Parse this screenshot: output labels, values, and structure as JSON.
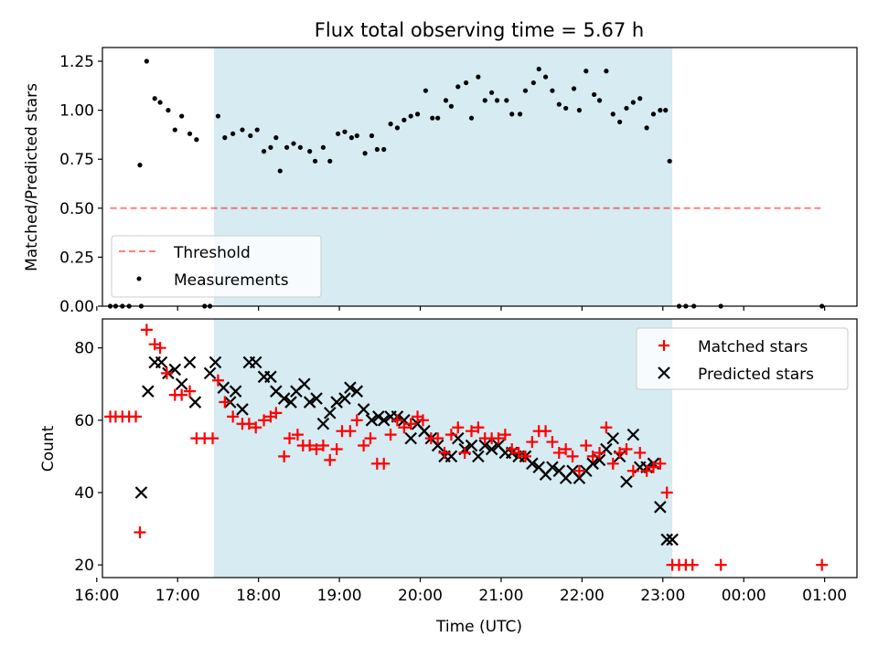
{
  "colors": {
    "shade": "#add8e6",
    "threshold": "#ff0000",
    "measurement": "#000000",
    "matched": "#ff0000",
    "predicted": "#000000"
  },
  "chart_data": [
    {
      "type": "scatter",
      "title": "Flux total observing time = 5.67 h",
      "xlabel": "",
      "ylabel": "Matched/Predicted stars",
      "xlim": [
        16.07,
        25.4
      ],
      "ylim": [
        0,
        1.32
      ],
      "yticks": [
        "0.00",
        "0.25",
        "0.50",
        "0.75",
        "1.00",
        "1.25"
      ],
      "grid": false,
      "legend_position": "lower-left",
      "shaded_interval": {
        "start": "17:27",
        "end": "23:07"
      },
      "threshold": {
        "name": "Threshold",
        "value": 0.5,
        "x_start": "16:10",
        "x_end": "24:57"
      },
      "series": [
        {
          "name": "Measurements",
          "x": [
            "16:10",
            "16:14",
            "16:19",
            "16:24",
            "16:32",
            "16:33",
            "16:37",
            "16:43",
            "16:47",
            "16:53",
            "16:58",
            "17:03",
            "17:09",
            "17:14",
            "17:20",
            "17:24",
            "17:30",
            "17:35",
            "17:41",
            "17:48",
            "17:54",
            "17:59",
            "18:04",
            "18:09",
            "18:13",
            "18:16",
            "18:21",
            "18:26",
            "18:31",
            "18:38",
            "18:42",
            "18:48",
            "18:53",
            "18:59",
            "19:04",
            "19:09",
            "19:13",
            "19:19",
            "19:24",
            "19:28",
            "19:33",
            "19:38",
            "19:43",
            "19:48",
            "19:53",
            "19:58",
            "20:04",
            "20:09",
            "20:13",
            "20:19",
            "20:23",
            "20:28",
            "20:34",
            "20:38",
            "20:43",
            "20:48",
            "20:53",
            "20:57",
            "21:04",
            "21:08",
            "21:14",
            "21:18",
            "21:24",
            "21:28",
            "21:33",
            "21:38",
            "21:43",
            "21:48",
            "21:54",
            "21:58",
            "22:03",
            "22:09",
            "22:13",
            "22:18",
            "22:23",
            "22:28",
            "22:33",
            "22:38",
            "22:43",
            "22:48",
            "22:53",
            "22:58",
            "23:02",
            "23:05",
            "23:12",
            "23:17",
            "23:23",
            "23:43",
            "24:58"
          ],
          "y": [
            0,
            0,
            0,
            0,
            0.72,
            0,
            1.25,
            1.06,
            1.04,
            1.0,
            0.9,
            0.97,
            0.88,
            0.85,
            0,
            0,
            0.97,
            0.86,
            0.88,
            0.9,
            0.87,
            0.9,
            0.79,
            0.81,
            0.86,
            0.69,
            0.81,
            0.83,
            0.81,
            0.79,
            0.74,
            0.81,
            0.74,
            0.88,
            0.89,
            0.86,
            0.87,
            0.78,
            0.87,
            0.8,
            0.8,
            0.93,
            0.91,
            0.95,
            0.97,
            0.98,
            1.1,
            0.96,
            0.96,
            1.05,
            1.02,
            1.12,
            1.14,
            0.96,
            1.17,
            1.05,
            1.09,
            1.05,
            1.05,
            0.98,
            0.98,
            1.1,
            1.14,
            1.21,
            1.17,
            1.1,
            1.03,
            1.01,
            1.11,
            1.0,
            1.2,
            1.08,
            1.05,
            1.2,
            0.98,
            0.94,
            1.01,
            1.04,
            1.06,
            0.91,
            0.98,
            1.0,
            1.0,
            0.74,
            0,
            0,
            0,
            0,
            0
          ]
        }
      ]
    },
    {
      "type": "scatter",
      "title": "",
      "xlabel": "Time (UTC)",
      "ylabel": "Count",
      "xlim": [
        16.07,
        25.4
      ],
      "ylim": [
        16.5,
        88
      ],
      "xticks": [
        "16:00",
        "17:00",
        "18:00",
        "19:00",
        "20:00",
        "21:00",
        "22:00",
        "23:00",
        "00:00",
        "01:00"
      ],
      "yticks": [
        "20",
        "40",
        "60",
        "80"
      ],
      "grid": false,
      "legend_position": "top-right",
      "shaded_interval": {
        "start": "17:27",
        "end": "23:07"
      },
      "series": [
        {
          "name": "Matched stars",
          "marker": "+",
          "x": [
            "16:10",
            "16:14",
            "16:19",
            "16:24",
            "16:29",
            "16:32",
            "16:37",
            "16:43",
            "16:47",
            "16:52",
            "16:58",
            "17:03",
            "17:09",
            "17:14",
            "17:20",
            "17:26",
            "17:30",
            "17:35",
            "17:41",
            "17:48",
            "17:53",
            "17:58",
            "18:04",
            "18:09",
            "18:13",
            "18:19",
            "18:23",
            "18:29",
            "18:33",
            "18:38",
            "18:43",
            "18:48",
            "18:53",
            "18:58",
            "19:02",
            "19:08",
            "19:13",
            "19:18",
            "19:23",
            "19:28",
            "19:33",
            "19:38",
            "19:43",
            "19:48",
            "19:53",
            "19:58",
            "20:02",
            "20:08",
            "20:13",
            "20:18",
            "20:23",
            "20:28",
            "20:33",
            "20:38",
            "20:43",
            "20:48",
            "20:53",
            "20:58",
            "21:03",
            "21:08",
            "21:13",
            "21:18",
            "21:23",
            "21:28",
            "21:33",
            "21:38",
            "21:43",
            "21:48",
            "21:53",
            "21:58",
            "22:03",
            "22:08",
            "22:13",
            "22:18",
            "22:23",
            "22:28",
            "22:33",
            "22:38",
            "22:43",
            "22:48",
            "22:53",
            "22:58",
            "23:03",
            "23:07",
            "23:12",
            "23:17",
            "23:22",
            "23:43",
            "24:58"
          ],
          "y": [
            61,
            61,
            61,
            61,
            61,
            29,
            85,
            81,
            80,
            73,
            67,
            67,
            68,
            55,
            55,
            55,
            71,
            65,
            61,
            59,
            59,
            58,
            60,
            61,
            62,
            50,
            55,
            56,
            53,
            53,
            52,
            53,
            49,
            52,
            57,
            57,
            60,
            53,
            55,
            48,
            48,
            56,
            60,
            58,
            59,
            61,
            60,
            55,
            55,
            51,
            56,
            58,
            51,
            57,
            58,
            55,
            55,
            55,
            56,
            52,
            51,
            50,
            54,
            57,
            57,
            54,
            51,
            52,
            50,
            46,
            53,
            50,
            51,
            58,
            48,
            51,
            52,
            46,
            51,
            46,
            47,
            48,
            40,
            20,
            20,
            20,
            20,
            20,
            20
          ]
        },
        {
          "name": "Predicted stars",
          "marker": "x",
          "x": [
            "16:33",
            "16:38",
            "16:43",
            "16:48",
            "16:53",
            "16:58",
            "17:03",
            "17:09",
            "17:13",
            "17:24",
            "17:28",
            "17:34",
            "17:39",
            "17:43",
            "17:48",
            "17:53",
            "17:58",
            "18:04",
            "18:09",
            "18:13",
            "18:19",
            "18:24",
            "18:28",
            "18:34",
            "18:38",
            "18:43",
            "18:48",
            "18:53",
            "18:58",
            "19:04",
            "19:08",
            "19:13",
            "19:18",
            "19:24",
            "19:29",
            "19:33",
            "19:38",
            "19:43",
            "19:48",
            "19:53",
            "19:58",
            "20:03",
            "20:08",
            "20:13",
            "20:18",
            "20:23",
            "20:28",
            "20:33",
            "20:38",
            "20:43",
            "20:48",
            "20:53",
            "20:58",
            "21:03",
            "21:08",
            "21:13",
            "21:18",
            "21:23",
            "21:28",
            "21:33",
            "21:38",
            "21:43",
            "21:48",
            "21:53",
            "21:58",
            "22:03",
            "22:08",
            "22:13",
            "22:18",
            "22:23",
            "22:28",
            "22:33",
            "22:38",
            "22:43",
            "22:48",
            "22:53",
            "22:58",
            "23:03",
            "23:07"
          ],
          "y": [
            40,
            68,
            76,
            76,
            73,
            74,
            70,
            76,
            65,
            73,
            76,
            69,
            65,
            68,
            63,
            76,
            76,
            72,
            72,
            68,
            66,
            65,
            68,
            70,
            65,
            66,
            59,
            62,
            65,
            66,
            69,
            68,
            63,
            60,
            61,
            60,
            61,
            61,
            60,
            55,
            59,
            57,
            55,
            53,
            50,
            50,
            55,
            52,
            53,
            50,
            53,
            52,
            53,
            51,
            51,
            50,
            50,
            48,
            47,
            45,
            47,
            46,
            44,
            46,
            44,
            46,
            48,
            49,
            52,
            55,
            50,
            43,
            56,
            47,
            47,
            48,
            36,
            27,
            27
          ]
        }
      ]
    }
  ]
}
